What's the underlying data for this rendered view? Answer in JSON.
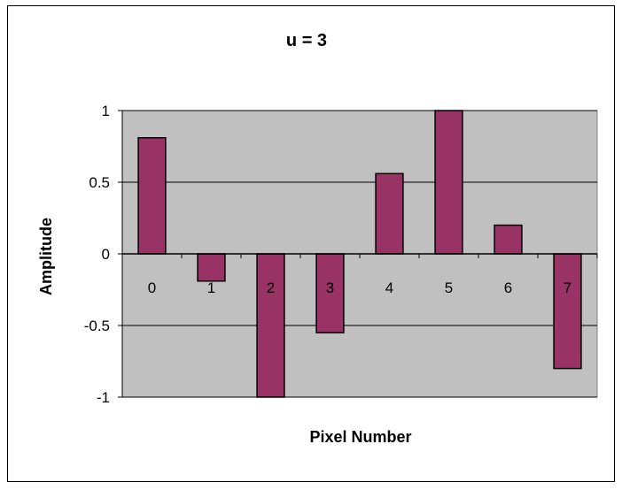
{
  "chart_data": {
    "type": "bar",
    "title": "u = 3",
    "xlabel": "Pixel Number",
    "ylabel": "Amplitude",
    "categories": [
      "0",
      "1",
      "2",
      "3",
      "4",
      "5",
      "6",
      "7"
    ],
    "values": [
      0.81,
      -0.19,
      -1.0,
      -0.55,
      0.56,
      1.0,
      0.2,
      -0.8
    ],
    "ylim": [
      -1,
      1
    ],
    "yticks": [
      1,
      0.5,
      0,
      -0.5,
      -1
    ],
    "ytick_labels": [
      "1",
      "0.5",
      "0",
      "-0.5",
      "-1"
    ],
    "grid": true,
    "legend": "none",
    "colors": {
      "bar_fill": "#993366",
      "bar_stroke": "#000000",
      "plot_background": "#c0c0c0",
      "gridline": "#000000"
    }
  }
}
